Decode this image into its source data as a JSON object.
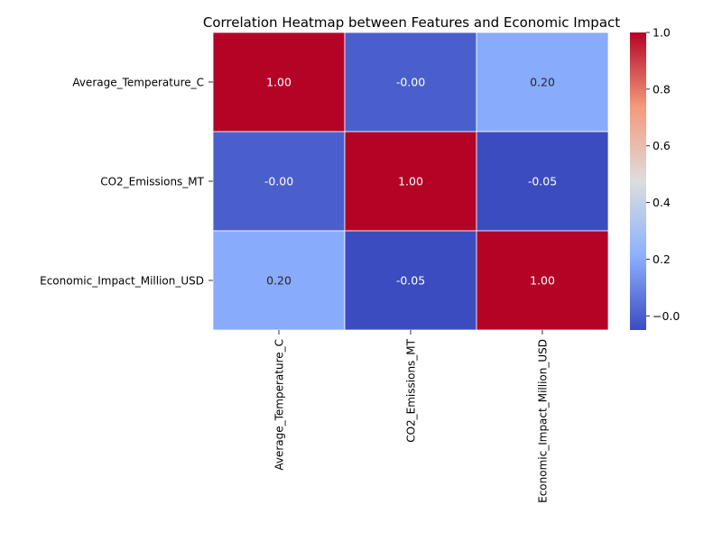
{
  "chart_data": {
    "type": "heatmap",
    "title": "Correlation Heatmap between Features and Economic Impact",
    "row_labels": [
      "Average_Temperature_C",
      "CO2_Emissions_MT",
      "Economic_Impact_Million_USD"
    ],
    "col_labels": [
      "Average_Temperature_C",
      "CO2_Emissions_MT",
      "Economic_Impact_Million_USD"
    ],
    "values": [
      [
        1.0,
        -0.0,
        0.2
      ],
      [
        -0.0,
        1.0,
        -0.05
      ],
      [
        0.2,
        -0.05,
        1.0
      ]
    ],
    "value_labels": [
      [
        "1.00",
        "-0.00",
        "0.20"
      ],
      [
        "-0.00",
        "1.00",
        "-0.05"
      ],
      [
        "0.20",
        "-0.05",
        "1.00"
      ]
    ],
    "colormap": "coolwarm",
    "colorbar": {
      "range": [
        -0.05,
        1.0
      ],
      "ticks": [
        0.0,
        0.2,
        0.4,
        0.6,
        0.8,
        1.0
      ],
      "tick_labels": [
        "−0.0",
        "0.2",
        "0.4",
        "0.6",
        "0.8",
        "1.0"
      ]
    },
    "cell_border_color": "#ffffff"
  }
}
